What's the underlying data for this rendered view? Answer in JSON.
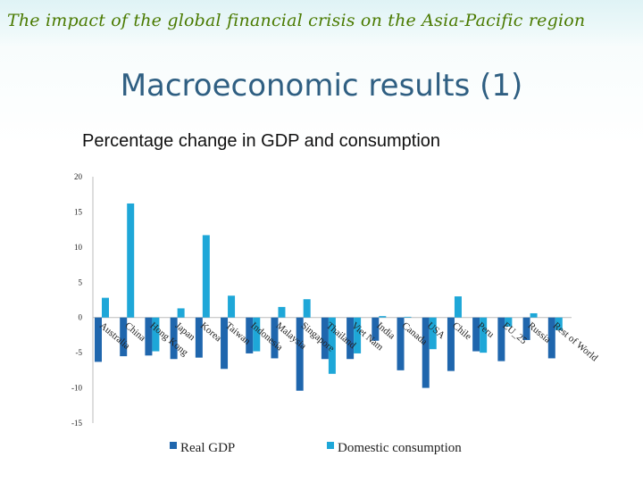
{
  "banner": "The impact of the global financial crisis on the Asia-Pacific region",
  "slide_title": "Macroeconomic results (1)",
  "colors": {
    "real_gdp": "#1f66ad",
    "consumption": "#1ea7d8",
    "banner": "#4a7a00",
    "title": "#2f5f82"
  },
  "chart_data": {
    "type": "bar",
    "title": "Percentage change in GDP and consumption",
    "xlabel": "",
    "ylabel": "",
    "ylim": [
      -15,
      20
    ],
    "yticks": [
      20,
      15,
      10,
      5,
      0,
      -5,
      -10,
      -15
    ],
    "categories": [
      "Australia",
      "China",
      "Hong Kong",
      "Japan",
      "Korea",
      "Taiwan",
      "Indonesia",
      "Malaysia",
      "Singapore",
      "Thailand",
      "Viet Nam",
      "India",
      "Canada",
      "USA",
      "Chile",
      "Peru",
      "EU_25",
      "Russia",
      "Rest of World"
    ],
    "series": [
      {
        "name": "Real GDP",
        "values": [
          -6.3,
          -5.5,
          -5.4,
          -5.9,
          -5.7,
          -7.3,
          -5.1,
          -5.8,
          -10.4,
          -5.9,
          -5.9,
          -3.3,
          -7.5,
          -10.0,
          -7.6,
          -4.8,
          -6.2,
          -3.2,
          -5.8
        ]
      },
      {
        "name": "Domestic consumption",
        "values": [
          2.8,
          16.2,
          -4.8,
          1.3,
          11.7,
          3.1,
          -4.8,
          1.5,
          2.6,
          -8.0,
          -5.1,
          0.2,
          0.1,
          -4.5,
          3.0,
          -5.0,
          -1.3,
          0.6,
          -1.8
        ]
      }
    ],
    "legend_position": "bottom"
  }
}
